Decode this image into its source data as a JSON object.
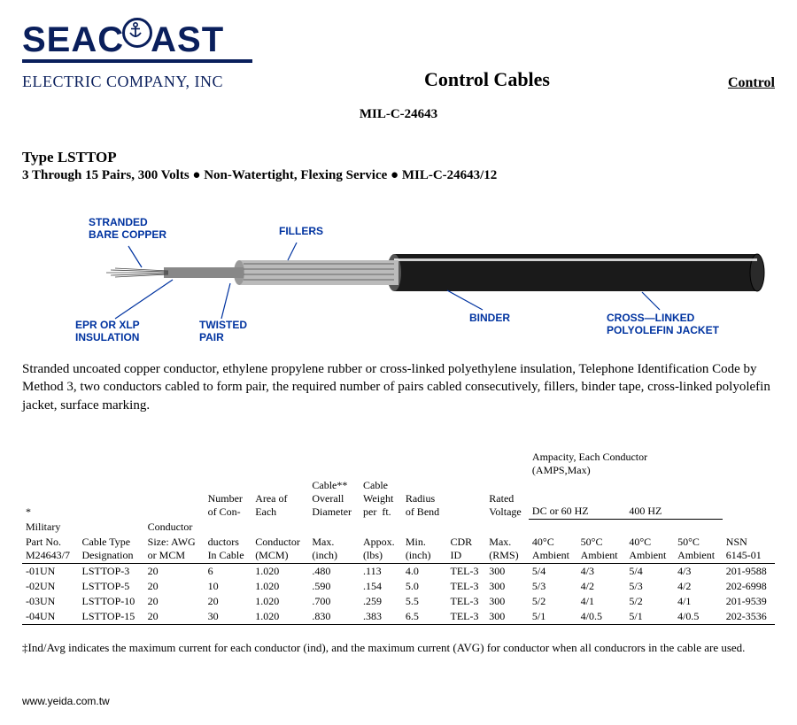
{
  "logo": {
    "text_left": "SEAC",
    "text_right": "AST"
  },
  "company": "ELECTRIC COMPANY, INC",
  "heading": {
    "center": "Control Cables",
    "right": "Control",
    "sub": "MIL-C-24643"
  },
  "type": {
    "line1": "Type  LSTTOP",
    "line2": "3 Through 15 Pairs, 300 Volts  ● Non-Watertight, Flexing Service ● MIL-C-24643/12"
  },
  "diagram_labels": {
    "stranded": "STRANDED\nBARE COPPER",
    "fillers": "FILLERS",
    "epr": "EPR OR XLP\nINSULATION",
    "twisted": "TWISTED\nPAIR",
    "binder": "BINDER",
    "jacket": "CROSS—LINKED\nPOLYOLEFIN JACKET"
  },
  "description": "Stranded uncoated copper conductor, ethylene propylene rubber or cross-linked polyethylene insulation, Telephone Identification Code by Method 3, two conductors cabled to form pair, the required number of pairs cabled consecutively, fillers, binder tape, cross-linked polyolefin jacket, surface marking.",
  "table": {
    "group_headers": {
      "ampacity": "Ampacity, Each Conductor\n(AMPS,Max)",
      "dc60": "DC or 60 HZ",
      "hz400": "400 HZ"
    },
    "col_headers_top": {
      "star": "*",
      "military": "Military",
      "conductor": "Conductor",
      "num": "Number\nof Con-",
      "area": "Area of\nEach",
      "cable_dia": "Cable**\nOverall\nDiameter",
      "cable_wt": "Cable\nWeight\nper  ft.",
      "radius": "Radius\nof Bend",
      "rated": "Rated\nVoltage"
    },
    "col_headers_bot": {
      "part": "Part No.\nM24643/7",
      "cabletype": "Cable Type\nDesignation",
      "size": "Size: AWG\nor MCM",
      "ductors": "ductors\nIn Cable",
      "mcm": "Conductor\n(MCM)",
      "max": "Max.\n(inch)",
      "appox": "Appox.\n(lbs)",
      "min": "Min.\n(inch)",
      "cdr": "CDR\nID",
      "rms": "Max.\n(RMS)",
      "a40": "40°C\nAmbient",
      "a50": "50°C\nAmbient",
      "b40": "40°C\nAmbient",
      "b50": "50°C\nAmbient",
      "nsn": "NSN\n6145-01"
    },
    "rows": [
      {
        "part": "-01UN",
        "type": "LSTTOP-3",
        "size": "20",
        "num": "6",
        "area": "1.020",
        "dia": ".480",
        "wt": ".113",
        "rad": "4.0",
        "cdr": "TEL-3",
        "rms": "300",
        "a40": "5/4",
        "a50": "4/3",
        "b40": "5/4",
        "b50": "4/3",
        "nsn": "201-9588"
      },
      {
        "part": "-02UN",
        "type": "LSTTOP-5",
        "size": "20",
        "num": "10",
        "area": "1.020",
        "dia": ".590",
        "wt": ".154",
        "rad": "5.0",
        "cdr": "TEL-3",
        "rms": "300",
        "a40": "5/3",
        "a50": "4/2",
        "b40": "5/3",
        "b50": "4/2",
        "nsn": "202-6998"
      },
      {
        "part": "-03UN",
        "type": "LSTTOP-10",
        "size": "20",
        "num": "20",
        "area": "1.020",
        "dia": ".700",
        "wt": ".259",
        "rad": "5.5",
        "cdr": "TEL-3",
        "rms": "300",
        "a40": "5/2",
        "a50": "4/1",
        "b40": "5/2",
        "b50": "4/1",
        "nsn": "201-9539"
      },
      {
        "part": "-04UN",
        "type": "LSTTOP-15",
        "size": "20",
        "num": "30",
        "area": "1.020",
        "dia": ".830",
        "wt": ".383",
        "rad": "6.5",
        "cdr": "TEL-3",
        "rms": "300",
        "a40": "5/1",
        "a50": "4/0.5",
        "b40": "5/1",
        "b50": "4/0.5",
        "nsn": "202-3536"
      }
    ]
  },
  "footnote": "‡Ind/Avg indicates the maximum current for each conductor (ind), and the maximum current (AVG) for conductor when all conducrors in the cable are used.",
  "site": "www.yeida.com.tw",
  "colors": {
    "brand": "#0a1f5c",
    "label_blue": "#0033a0",
    "text": "#000000",
    "bg": "#ffffff"
  }
}
